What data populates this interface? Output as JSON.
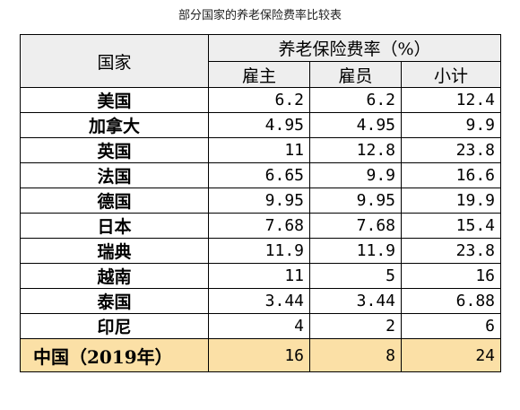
{
  "caption": "部分国家的养老保险费率比较表",
  "table": {
    "header": {
      "country": "国家",
      "rate_group": "养老保险费率（%）",
      "employer": "雇主",
      "employee": "雇员",
      "subtotal": "小计"
    },
    "rows": [
      {
        "country": "美国",
        "employer": "6.2",
        "employee": "6.2",
        "subtotal": "12.4"
      },
      {
        "country": "加拿大",
        "employer": "4.95",
        "employee": "4.95",
        "subtotal": "9.9"
      },
      {
        "country": "英国",
        "employer": "11",
        "employee": "12.8",
        "subtotal": "23.8"
      },
      {
        "country": "法国",
        "employer": "6.65",
        "employee": "9.9",
        "subtotal": "16.6"
      },
      {
        "country": "德国",
        "employer": "9.95",
        "employee": "9.95",
        "subtotal": "19.9"
      },
      {
        "country": "日本",
        "employer": "7.68",
        "employee": "7.68",
        "subtotal": "15.4"
      },
      {
        "country": "瑞典",
        "employer": "11.9",
        "employee": "11.9",
        "subtotal": "23.8"
      },
      {
        "country": "越南",
        "employer": "11",
        "employee": "5",
        "subtotal": "16"
      },
      {
        "country": "泰国",
        "employer": "3.44",
        "employee": "3.44",
        "subtotal": "6.88"
      },
      {
        "country": "印尼",
        "employer": "4",
        "employee": "2",
        "subtotal": "6"
      },
      {
        "country": "中国（2019年）",
        "employer": "16",
        "employee": "8",
        "subtotal": "24",
        "highlight": true
      }
    ],
    "highlight_color": "#fbe0a6",
    "header_color": "#eeeeee"
  }
}
